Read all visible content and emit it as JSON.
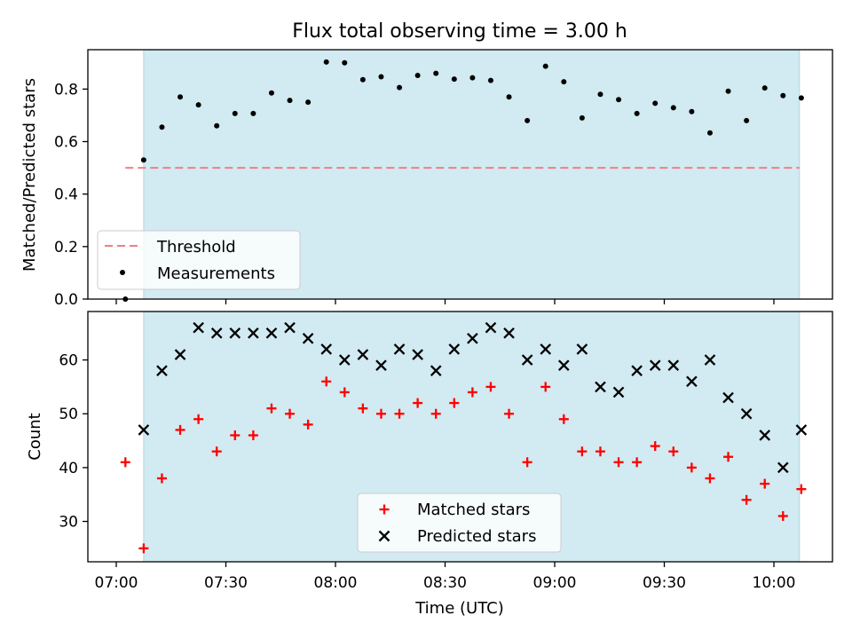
{
  "title": "Flux total observing time = 3.00 h",
  "xlabel": "Time (UTC)",
  "colors": {
    "shade": "#add8e6",
    "threshold": "#f08080",
    "matched": "#ff0000",
    "predicted": "#000000",
    "measurements": "#000000"
  },
  "chart_data": [
    {
      "type": "scatter",
      "ylabel": "Matched/Predicted stars",
      "ylim": [
        0,
        0.95
      ],
      "yticks": [
        "0.0",
        "0.2",
        "0.4",
        "0.6",
        "0.8"
      ],
      "shaded_span_minutes": [
        7.5,
        187
      ],
      "threshold": {
        "value": 0.5,
        "x_range_minutes": [
          2.5,
          187
        ],
        "label": "Threshold"
      },
      "legend": {
        "position": "lower-left",
        "entries": [
          "Threshold",
          "Measurements"
        ]
      },
      "series": [
        {
          "name": "Measurements",
          "x_minutes": [
            2.5,
            7.5,
            12.5,
            17.5,
            22.5,
            27.5,
            32.5,
            37.5,
            42.5,
            47.5,
            52.5,
            57.5,
            62.5,
            67.5,
            72.5,
            77.5,
            82.5,
            87.5,
            92.5,
            97.5,
            102.5,
            107.5,
            112.5,
            117.5,
            122.5,
            127.5,
            132.5,
            137.5,
            142.5,
            147.5,
            152.5,
            157.5,
            162.5,
            167.5,
            172.5,
            177.5,
            182.5,
            187.5
          ],
          "values": [
            0.0,
            0.53,
            0.655,
            0.77,
            0.74,
            0.66,
            0.707,
            0.707,
            0.785,
            0.757,
            0.75,
            0.903,
            0.9,
            0.836,
            0.847,
            0.806,
            0.852,
            0.86,
            0.838,
            0.843,
            0.833,
            0.77,
            0.68,
            0.887,
            0.828,
            0.69,
            0.78,
            0.76,
            0.707,
            0.746,
            0.729,
            0.714,
            0.633,
            0.792,
            0.68,
            0.804,
            0.775,
            0.766
          ]
        }
      ]
    },
    {
      "type": "scatter",
      "ylabel": "Count",
      "ylim": [
        22.5,
        69
      ],
      "yticks": [
        "30",
        "40",
        "50",
        "60"
      ],
      "shaded_span_minutes": [
        7.5,
        187
      ],
      "legend": {
        "position": "lower-center",
        "entries": [
          "Matched stars",
          "Predicted stars"
        ]
      },
      "xticks": [
        "07:00",
        "07:30",
        "08:00",
        "08:30",
        "09:00",
        "09:30",
        "10:00"
      ],
      "series": [
        {
          "name": "Matched stars",
          "x_minutes": [
            2.5,
            7.5,
            12.5,
            17.5,
            22.5,
            27.5,
            32.5,
            37.5,
            42.5,
            47.5,
            52.5,
            57.5,
            62.5,
            67.5,
            72.5,
            77.5,
            82.5,
            87.5,
            92.5,
            97.5,
            102.5,
            107.5,
            112.5,
            117.5,
            122.5,
            127.5,
            132.5,
            137.5,
            142.5,
            147.5,
            152.5,
            157.5,
            162.5,
            167.5,
            172.5,
            177.5,
            182.5,
            187.5
          ],
          "values": [
            41,
            25,
            38,
            47,
            49,
            43,
            46,
            46,
            51,
            50,
            48,
            56,
            54,
            51,
            50,
            50,
            52,
            50,
            52,
            54,
            55,
            50,
            41,
            55,
            49,
            43,
            43,
            41,
            41,
            44,
            43,
            40,
            38,
            42,
            34,
            37,
            31,
            36
          ]
        },
        {
          "name": "Predicted stars",
          "x_minutes": [
            7.5,
            12.5,
            17.5,
            22.5,
            27.5,
            32.5,
            37.5,
            42.5,
            47.5,
            52.5,
            57.5,
            62.5,
            67.5,
            72.5,
            77.5,
            82.5,
            87.5,
            92.5,
            97.5,
            102.5,
            107.5,
            112.5,
            117.5,
            122.5,
            127.5,
            132.5,
            137.5,
            142.5,
            147.5,
            152.5,
            157.5,
            162.5,
            167.5,
            172.5,
            177.5,
            182.5,
            187.5
          ],
          "values": [
            47,
            58,
            61,
            66,
            65,
            65,
            65,
            65,
            66,
            64,
            62,
            60,
            61,
            59,
            62,
            61,
            58,
            62,
            64,
            66,
            65,
            60,
            62,
            59,
            62,
            55,
            54,
            58,
            59,
            59,
            56,
            60,
            53,
            50,
            46,
            40,
            47
          ]
        }
      ]
    }
  ]
}
